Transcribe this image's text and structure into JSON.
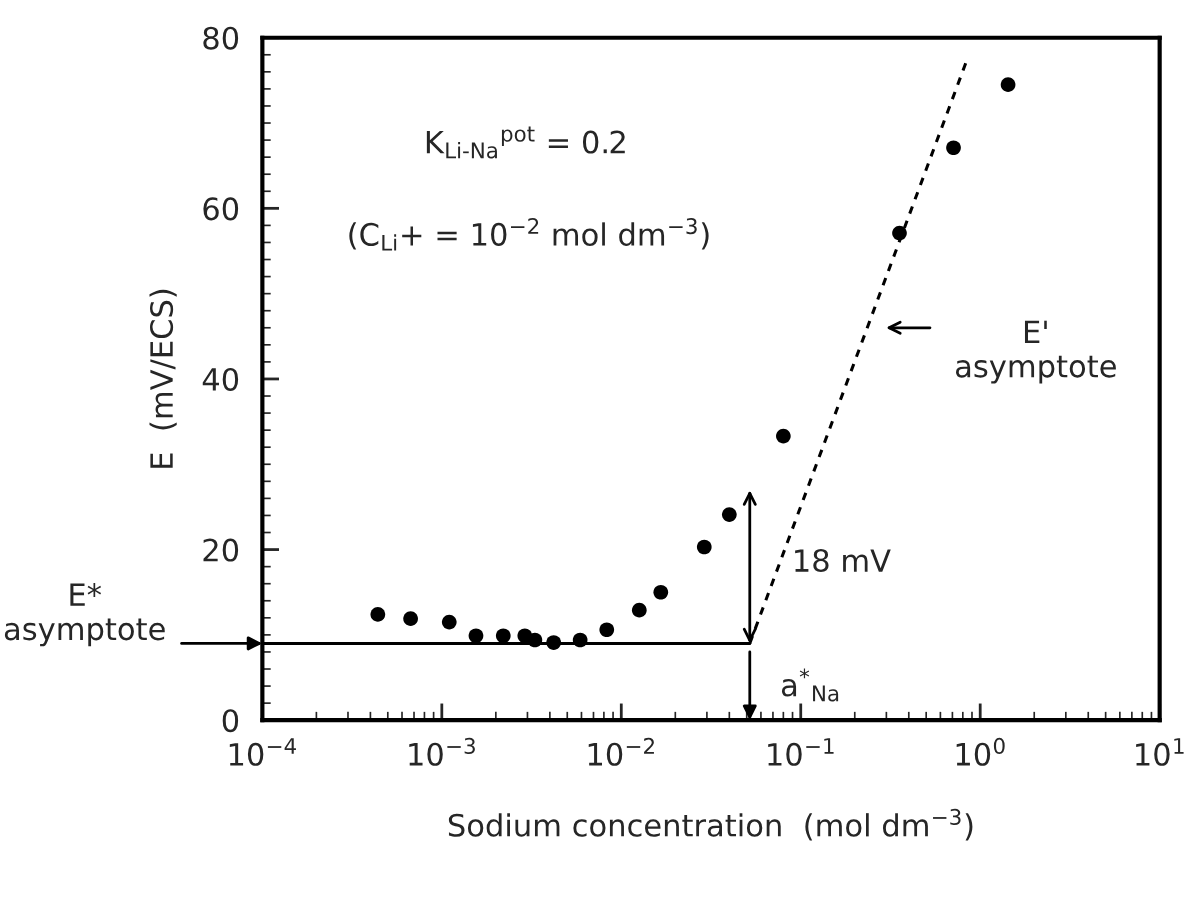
{
  "chart_data": {
    "type": "scatter",
    "xlabel": "Sodium concentration  (mol dm$^{−3}$)",
    "ylabel": "E  (mV/ECS)",
    "log": "x",
    "grid": false,
    "legend": false,
    "xlim": [
      0.0001,
      10
    ],
    "xticks": [
      {
        "value": 0.0001,
        "label": "10$^{−4}$"
      },
      {
        "value": 0.001,
        "label": "10$^{−3}$"
      },
      {
        "value": 0.01,
        "label": "10$^{−2}$"
      },
      {
        "value": 0.1,
        "label": "10$^{−1}$"
      },
      {
        "value": 1,
        "label": "10$^{0}$"
      },
      {
        "value": 10,
        "label": "10$^{1}$"
      }
    ],
    "ylim": [
      0,
      80
    ],
    "yticks": [
      0,
      20,
      40,
      60,
      80
    ],
    "series": [
      {
        "color": "#000000",
        "marker": "circle",
        "x": [
          0.00044,
          0.00067,
          0.0011,
          0.00155,
          0.0022,
          0.0029,
          0.0033,
          0.0042,
          0.0059,
          0.0083,
          0.0126,
          0.0166,
          0.029,
          0.04,
          0.08,
          0.355,
          0.71,
          1.43
        ],
        "values": [
          12.4,
          11.9,
          11.5,
          9.9,
          9.9,
          9.9,
          9.4,
          9.1,
          9.4,
          10.6,
          12.9,
          15.0,
          20.3,
          24.1,
          33.3,
          57.1,
          67.1,
          74.5
        ]
      },
      {
        "type": "line",
        "color": "#000000",
        "line_style": "solid",
        "x": [
          0.0001,
          0.052
        ],
        "values": [
          9,
          9
        ]
      },
      {
        "type": "line",
        "color": "#000000",
        "line_style": "dashed",
        "x": [
          0.83,
          0.052
        ],
        "values": [
          77,
          9
        ]
      }
    ],
    "annotations": [
      "K$_{Li-Na}$$^{pot}$ = 0.2",
      "(C$_{Li}$+ = 10$^{−2}$ mol dm$^{−3}$)",
      "E'\nasymptote",
      "18 mV",
      "a$^{*}$$_{Na}$",
      "E*\nasymptote"
    ]
  }
}
